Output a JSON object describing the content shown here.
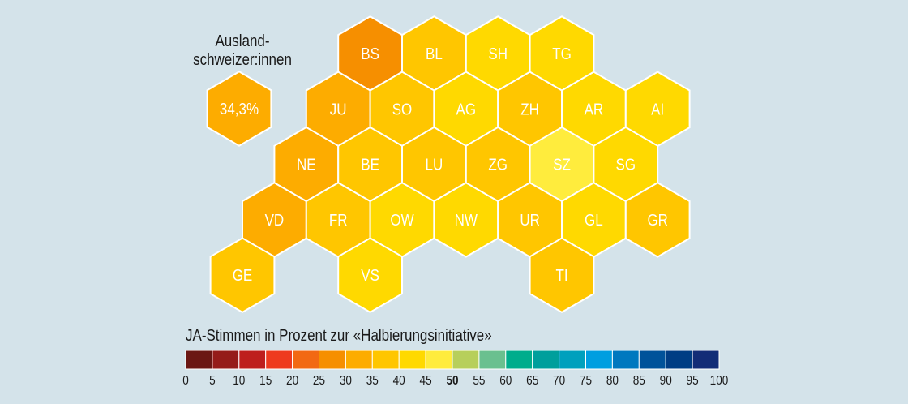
{
  "chart_data": {
    "type": "hex-tile-map",
    "title": "JA-Stimmen in Prozent zur «Halbierungsinitiative»",
    "abroad": {
      "label_line1": "Ausland-",
      "label_line2": "schweizer:innen",
      "value_text": "34,3%",
      "value": 34.3
    },
    "legend": {
      "ticks": [
        "0",
        "5",
        "10",
        "15",
        "20",
        "25",
        "30",
        "35",
        "40",
        "45",
        "50",
        "55",
        "60",
        "65",
        "70",
        "75",
        "80",
        "85",
        "90",
        "95",
        "100"
      ],
      "bold_tick": "50",
      "colors": [
        "#6b1713",
        "#951c19",
        "#be1e1d",
        "#ee3a1e",
        "#f26913",
        "#f68f00",
        "#fdac00",
        "#ffc600",
        "#ffd900",
        "#ffec3d",
        "#b7cf5b",
        "#6ac08f",
        "#00ad8c",
        "#009f9c",
        "#00a0bd",
        "#009ee0",
        "#0078bf",
        "#00529a",
        "#003d84",
        "#132c77"
      ]
    },
    "cantons": [
      {
        "code": "BS",
        "row": 0,
        "col": 2,
        "range": [
          25,
          30
        ]
      },
      {
        "code": "BL",
        "row": 0,
        "col": 3,
        "range": [
          35,
          40
        ]
      },
      {
        "code": "SH",
        "row": 0,
        "col": 4,
        "range": [
          40,
          45
        ]
      },
      {
        "code": "TG",
        "row": 0,
        "col": 5,
        "range": [
          40,
          45
        ]
      },
      {
        "code": "JU",
        "row": 1,
        "col": 1.5,
        "range": [
          30,
          35
        ]
      },
      {
        "code": "SO",
        "row": 1,
        "col": 2.5,
        "range": [
          35,
          40
        ]
      },
      {
        "code": "AG",
        "row": 1,
        "col": 3.5,
        "range": [
          40,
          45
        ]
      },
      {
        "code": "ZH",
        "row": 1,
        "col": 4.5,
        "range": [
          35,
          40
        ]
      },
      {
        "code": "AR",
        "row": 1,
        "col": 5.5,
        "range": [
          40,
          45
        ]
      },
      {
        "code": "AI",
        "row": 1,
        "col": 6.5,
        "range": [
          40,
          45
        ]
      },
      {
        "code": "NE",
        "row": 2,
        "col": 1,
        "range": [
          30,
          35
        ]
      },
      {
        "code": "BE",
        "row": 2,
        "col": 2,
        "range": [
          35,
          40
        ]
      },
      {
        "code": "LU",
        "row": 2,
        "col": 3,
        "range": [
          35,
          40
        ]
      },
      {
        "code": "ZG",
        "row": 2,
        "col": 4,
        "range": [
          35,
          40
        ]
      },
      {
        "code": "SZ",
        "row": 2,
        "col": 5,
        "range": [
          45,
          50
        ]
      },
      {
        "code": "SG",
        "row": 2,
        "col": 6,
        "range": [
          40,
          45
        ]
      },
      {
        "code": "VD",
        "row": 3,
        "col": 0.5,
        "range": [
          30,
          35
        ]
      },
      {
        "code": "FR",
        "row": 3,
        "col": 1.5,
        "range": [
          35,
          40
        ]
      },
      {
        "code": "OW",
        "row": 3,
        "col": 2.5,
        "range": [
          40,
          45
        ]
      },
      {
        "code": "NW",
        "row": 3,
        "col": 3.5,
        "range": [
          40,
          45
        ]
      },
      {
        "code": "UR",
        "row": 3,
        "col": 4.5,
        "range": [
          35,
          40
        ]
      },
      {
        "code": "GL",
        "row": 3,
        "col": 5.5,
        "range": [
          40,
          45
        ]
      },
      {
        "code": "GR",
        "row": 3,
        "col": 6.5,
        "range": [
          35,
          40
        ]
      },
      {
        "code": "GE",
        "row": 4,
        "col": 0,
        "range": [
          35,
          40
        ]
      },
      {
        "code": "VS",
        "row": 4,
        "col": 2,
        "range": [
          40,
          45
        ]
      },
      {
        "code": "TI",
        "row": 4,
        "col": 5,
        "range": [
          35,
          40
        ]
      }
    ]
  }
}
